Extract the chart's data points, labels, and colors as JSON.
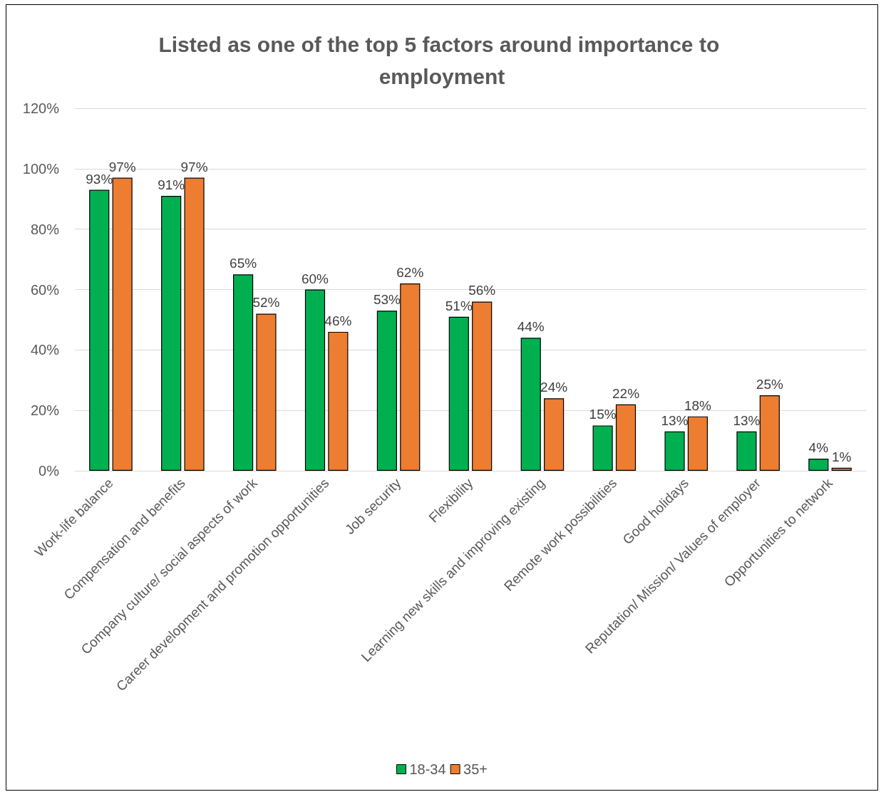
{
  "chart_data": {
    "type": "bar",
    "title": "Listed as one of the top 5 factors around importance to employment",
    "categories": [
      "Work-life balance",
      "Compensation and benefits",
      "Company culture/ social aspects of work",
      "Career development and promotion opportunities",
      "Job security",
      "Flexibility",
      "Learning new skills and improving existing",
      "Remote work possibilities",
      "Good holidays",
      "Reputation/ Mission/ Values of employer",
      "Opportunities to network"
    ],
    "series": [
      {
        "name": "18-34",
        "color": "#00b050",
        "values": [
          93,
          91,
          65,
          60,
          53,
          51,
          44,
          15,
          13,
          13,
          4
        ],
        "value_labels": [
          "93%",
          "91%",
          "65%",
          "60%",
          "53%",
          "51%",
          "44%",
          "15%",
          "13%",
          "13%",
          "4%"
        ]
      },
      {
        "name": "35+",
        "color": "#ed7d31",
        "values": [
          97,
          97,
          52,
          46,
          62,
          56,
          24,
          22,
          18,
          25,
          1
        ],
        "value_labels": [
          "97%",
          "97%",
          "52%",
          "46%",
          "62%",
          "56%",
          "24%",
          "22%",
          "18%",
          "25%",
          "1%"
        ]
      }
    ],
    "ylim": [
      0,
      120
    ],
    "yticks": [
      {
        "value": 0,
        "label": "0%"
      },
      {
        "value": 20,
        "label": "20%"
      },
      {
        "value": 40,
        "label": "40%"
      },
      {
        "value": 60,
        "label": "60%"
      },
      {
        "value": 80,
        "label": "80%"
      },
      {
        "value": 100,
        "label": "100%"
      },
      {
        "value": 120,
        "label": "120%"
      }
    ],
    "grid": "y",
    "legend": "bottom"
  }
}
